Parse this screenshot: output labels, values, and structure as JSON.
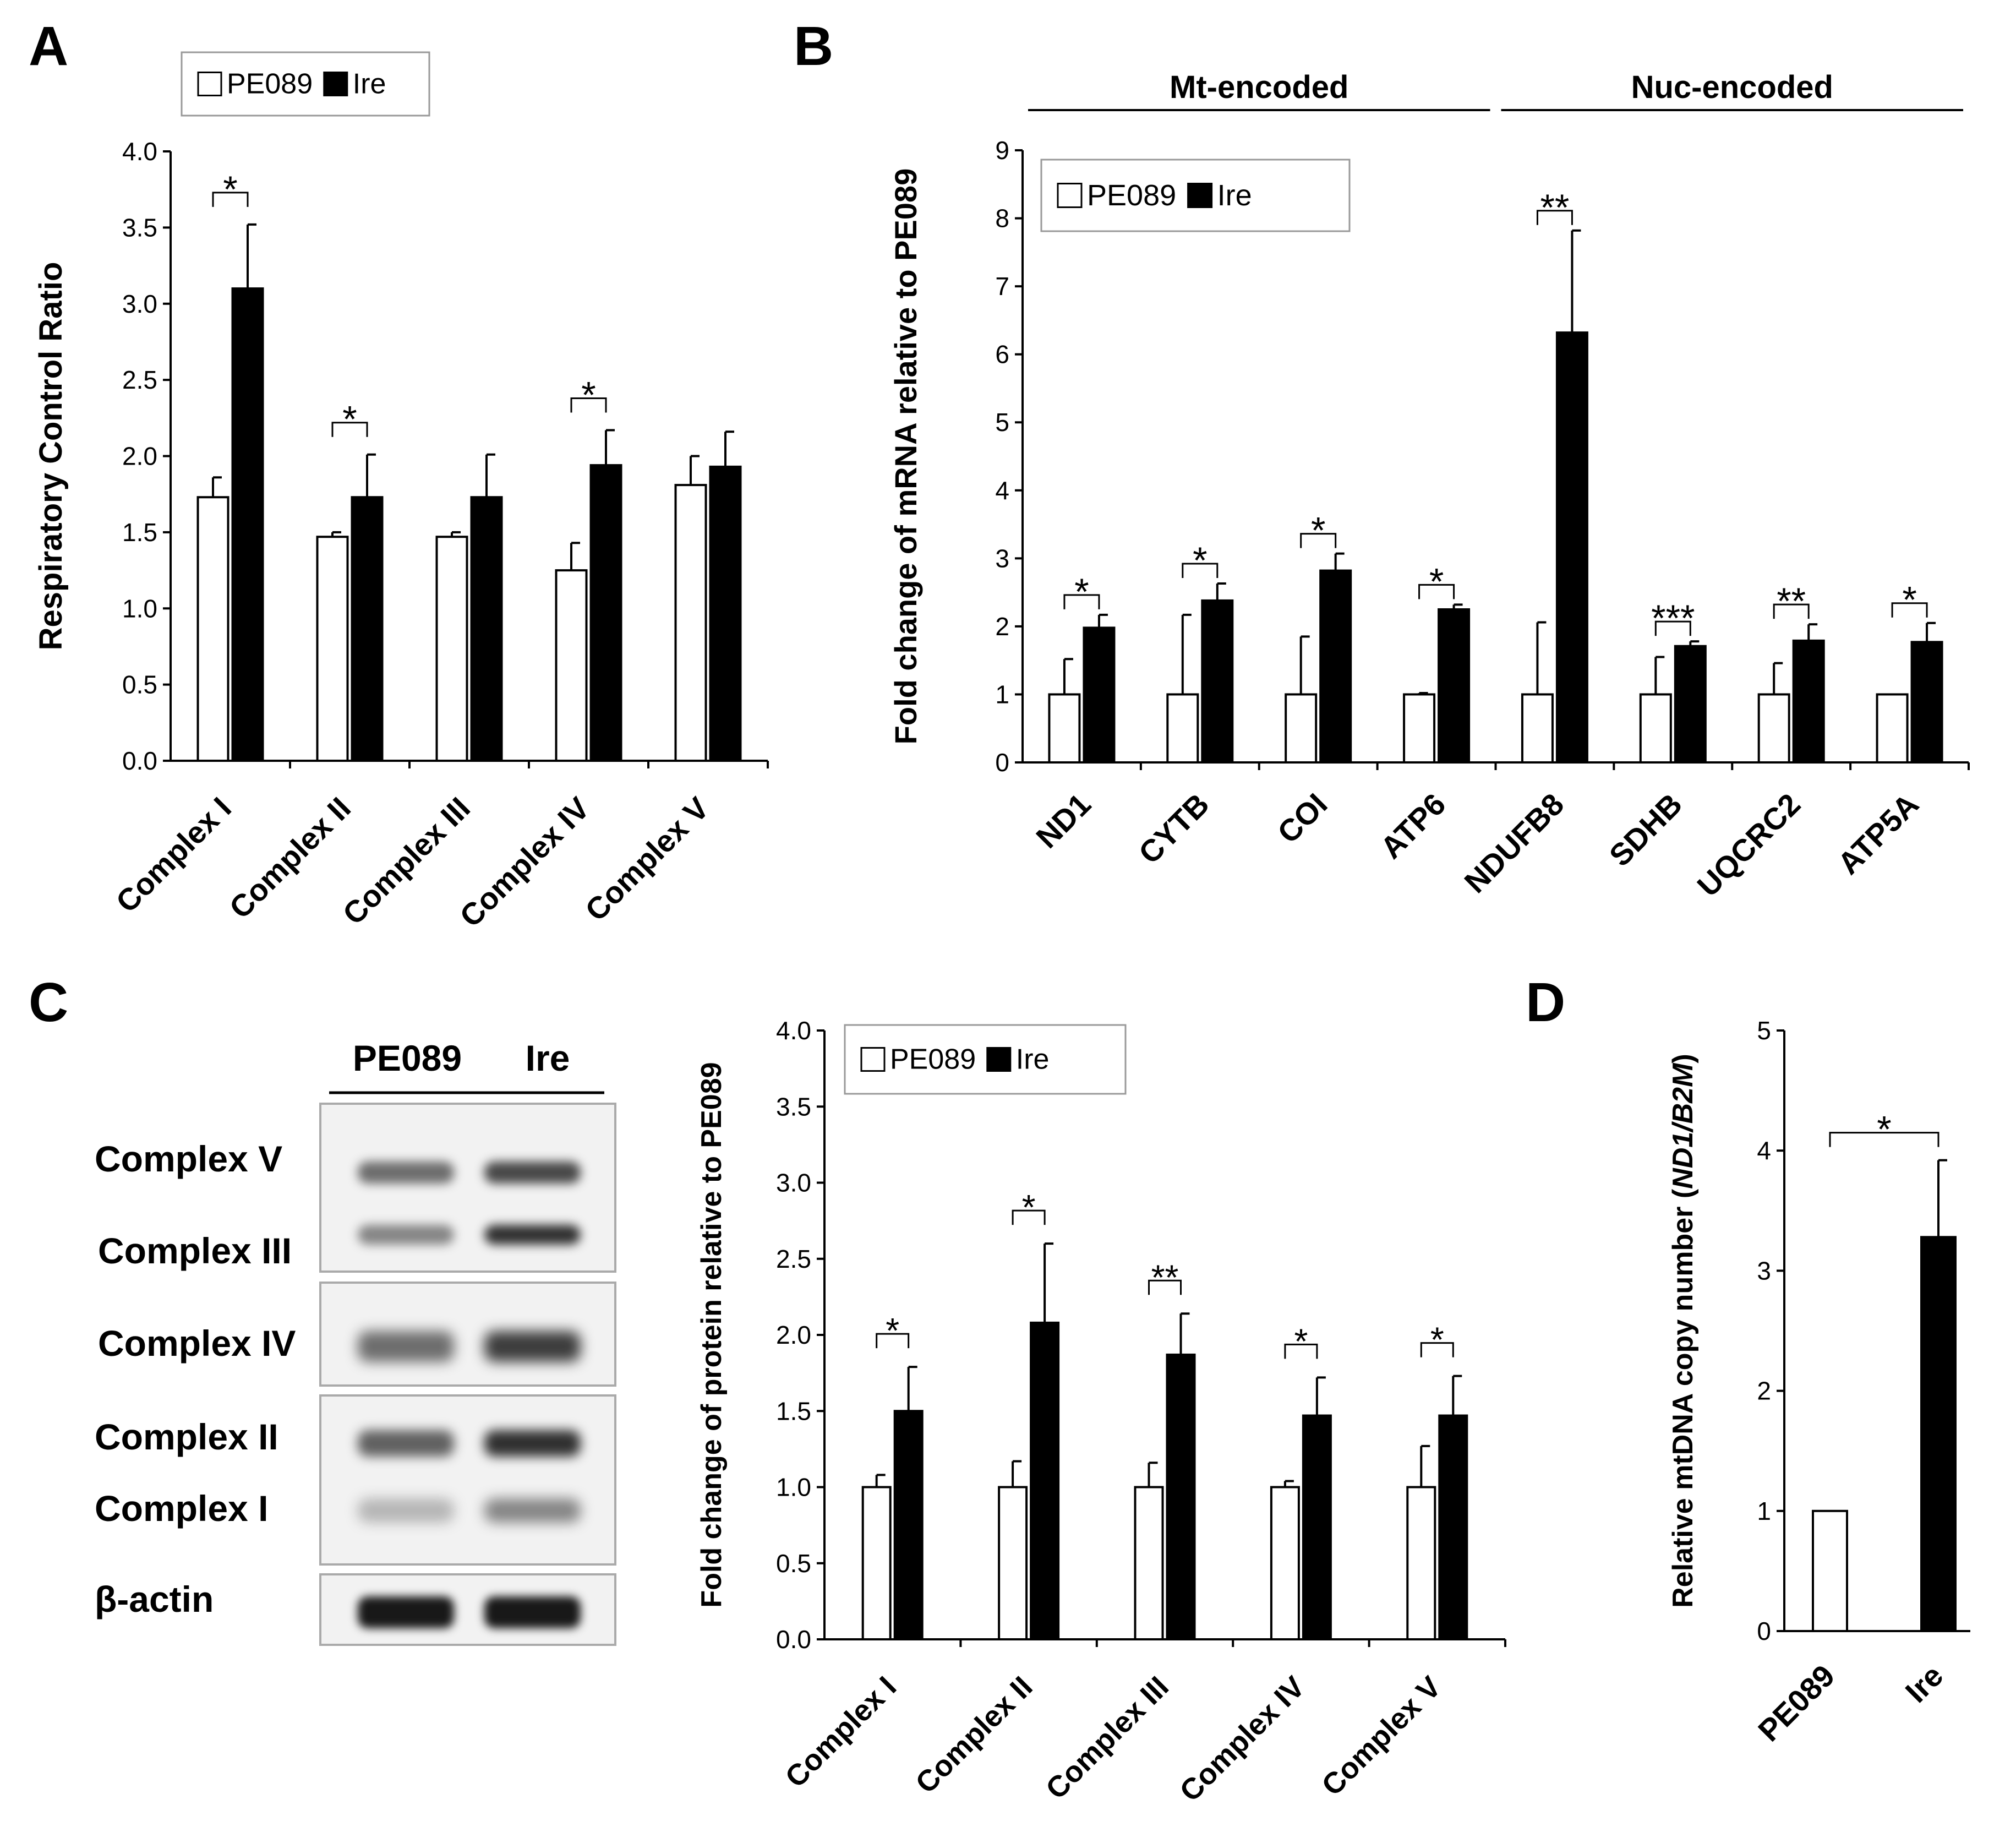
{
  "panel_labels": {
    "a": "A",
    "b": "B",
    "c": "C",
    "d": "D"
  },
  "legend": {
    "control": "PE089",
    "treated": "Ire"
  },
  "colors": {
    "control": "#ffffff",
    "treated": "#000000",
    "axis": "#000000",
    "box": "#999999"
  },
  "chart_data": [
    {
      "id": "A",
      "type": "bar",
      "title": "",
      "xlabel": "",
      "ylabel": "Respiratory Control Ratio",
      "ylim": [
        0,
        4.0
      ],
      "yticks": [
        "0.0",
        "0.5",
        "1.0",
        "1.5",
        "2.0",
        "2.5",
        "3.0",
        "3.5",
        "4.0"
      ],
      "categories": [
        "Complex I",
        "Complex II",
        "Complex III",
        "Complex IV",
        "Complex V"
      ],
      "series": [
        {
          "name": "PE089",
          "values": [
            1.73,
            1.47,
            1.47,
            1.25,
            1.81
          ],
          "errors": [
            0.13,
            0.03,
            0.03,
            0.18,
            0.19
          ]
        },
        {
          "name": "Ire",
          "values": [
            3.1,
            1.73,
            1.73,
            1.94,
            1.93
          ],
          "errors": [
            0.42,
            0.28,
            0.28,
            0.23,
            0.23
          ]
        }
      ],
      "significance": [
        "*",
        "*",
        "",
        "*",
        ""
      ],
      "legend_position": "top-left"
    },
    {
      "id": "B",
      "type": "bar",
      "title": "",
      "xlabel": "",
      "ylabel": "Fold change of mRNA relative to PE089",
      "ylim": [
        0,
        9
      ],
      "yticks": [
        "0",
        "1",
        "2",
        "3",
        "4",
        "5",
        "6",
        "7",
        "8",
        "9"
      ],
      "categories": [
        "ND1",
        "CYTB",
        "COI",
        "ATP6",
        "NDUFB8",
        "SDHB",
        "UQCRC2",
        "ATP5A"
      ],
      "groups": [
        {
          "label": "Mt-encoded",
          "categories": [
            "ND1",
            "CYTB",
            "COI",
            "ATP6"
          ]
        },
        {
          "label": "Nuc-encoded",
          "categories": [
            "NDUFB8",
            "SDHB",
            "UQCRC2",
            "ATP5A"
          ]
        }
      ],
      "series": [
        {
          "name": "PE089",
          "values": [
            1.0,
            1.0,
            1.0,
            1.0,
            1.0,
            1.0,
            1.0,
            1.0
          ],
          "errors": [
            0.52,
            1.17,
            0.85,
            0.02,
            1.06,
            0.55,
            0.46,
            0.0
          ]
        },
        {
          "name": "Ire",
          "values": [
            1.98,
            2.38,
            2.82,
            2.25,
            6.32,
            1.71,
            1.79,
            1.77
          ],
          "errors": [
            0.19,
            0.25,
            0.25,
            0.07,
            1.5,
            0.07,
            0.24,
            0.28
          ]
        }
      ],
      "significance": [
        "*",
        "*",
        "*",
        "*",
        "**",
        "***",
        "**",
        "*"
      ],
      "legend_position": "top-left"
    },
    {
      "id": "C",
      "type": "bar",
      "title": "",
      "xlabel": "",
      "ylabel": "Fold change of protein relative to PE089",
      "ylim": [
        0,
        4.0
      ],
      "yticks": [
        "0.0",
        "0.5",
        "1.0",
        "1.5",
        "2.0",
        "2.5",
        "3.0",
        "3.5",
        "4.0"
      ],
      "categories": [
        "Complex I",
        "Complex II",
        "Complex III",
        "Complex IV",
        "Complex V"
      ],
      "series": [
        {
          "name": "PE089",
          "values": [
            1.0,
            1.0,
            1.0,
            1.0,
            1.0
          ],
          "errors": [
            0.08,
            0.17,
            0.16,
            0.04,
            0.27
          ]
        },
        {
          "name": "Ire",
          "values": [
            1.5,
            2.08,
            1.87,
            1.47,
            1.47
          ],
          "errors": [
            0.29,
            0.52,
            0.27,
            0.25,
            0.26
          ]
        }
      ],
      "significance": [
        "*",
        "*",
        "**",
        "*",
        "*"
      ],
      "legend_position": "top-left"
    },
    {
      "id": "D",
      "type": "bar",
      "title": "",
      "xlabel": "",
      "ylabel_prefix": "Relative mtDNA copy number (",
      "ylabel_italic": "ND1/B2M",
      "ylabel_suffix": ")",
      "ylim": [
        0,
        5
      ],
      "yticks": [
        "0",
        "1",
        "2",
        "3",
        "4",
        "5"
      ],
      "categories": [
        "PE089",
        "Ire"
      ],
      "values": [
        1.0,
        3.28
      ],
      "errors": [
        0.0,
        0.64
      ],
      "significance": "*"
    }
  ],
  "blot": {
    "lanes": [
      "PE089",
      "Ire"
    ],
    "labels": [
      "Complex V",
      "Complex III",
      "Complex IV",
      "Complex II",
      "Complex I",
      "β-actin"
    ]
  }
}
